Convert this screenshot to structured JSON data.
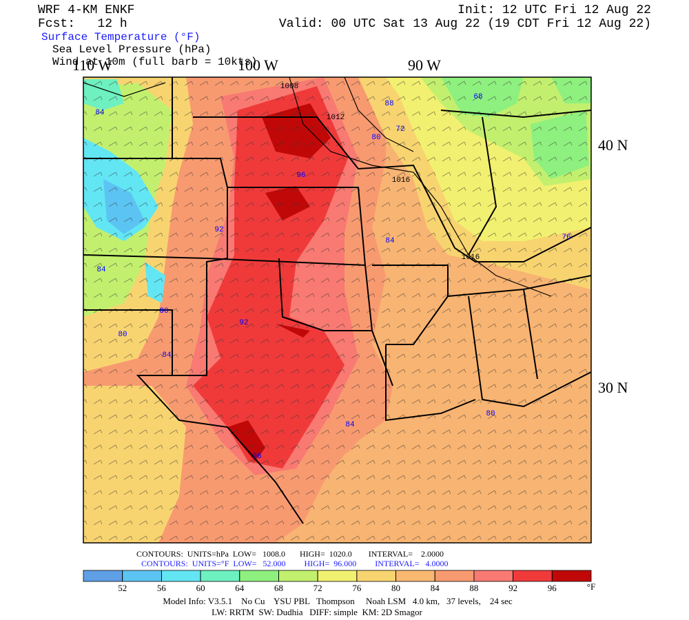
{
  "header": {
    "model": "WRF 4-KM ENKF",
    "init": "Init: 12 UTC Fri 12 Aug 22",
    "forecast": "Fcst:   12 h",
    "valid": "Valid: 00 UTC Sat 13 Aug 22 (19 CDT Fri 12 Aug 22)",
    "fields": [
      "Surface Temperature (°F)",
      "Sea Level Pressure (hPa)",
      "Wind at 10m (full barb = 10kts)"
    ]
  },
  "map": {
    "longitude_labels": [
      "110 W",
      "100 W",
      "90 W"
    ],
    "latitude_labels": [
      "40 N",
      "30 N"
    ],
    "contour_labels": [
      "1008",
      "1012",
      "88",
      "68",
      "72",
      "80",
      "96",
      "1016",
      "84",
      "92",
      "84",
      "84",
      "80",
      "1016",
      "76",
      "92",
      "80",
      "84",
      "84",
      "96",
      "80"
    ]
  },
  "contour_info": [
    "CONTOURS:  UNITS=hPa  LOW=   1008.0       HIGH=  1020.0        INTERVAL=    2.0000",
    "CONTOURS:  UNITS=°F  LOW=   52.000         HIGH=  96.000         INTERVAL=   4.0000"
  ],
  "colorbar": {
    "ticks": [
      52,
      56,
      60,
      64,
      68,
      72,
      76,
      80,
      84,
      88,
      92,
      96
    ],
    "unit": "°F",
    "colors": [
      "#5f9fe6",
      "#5cc4f2",
      "#62e6f4",
      "#6ef0c0",
      "#8ef07e",
      "#c2f06e",
      "#f2f070",
      "#f8d470",
      "#f8b870",
      "#f89a70",
      "#f87a72",
      "#f03a3a",
      "#c00808"
    ]
  },
  "model_info": [
    "Model Info: V3.5.1    No Cu    YSU PBL   Thompson     Noah LSM   4.0 km,   37 levels,    24 sec",
    "LW: RRTM  SW: Dudhia   DIFF: simple  KM: 2D Smagor"
  ]
}
